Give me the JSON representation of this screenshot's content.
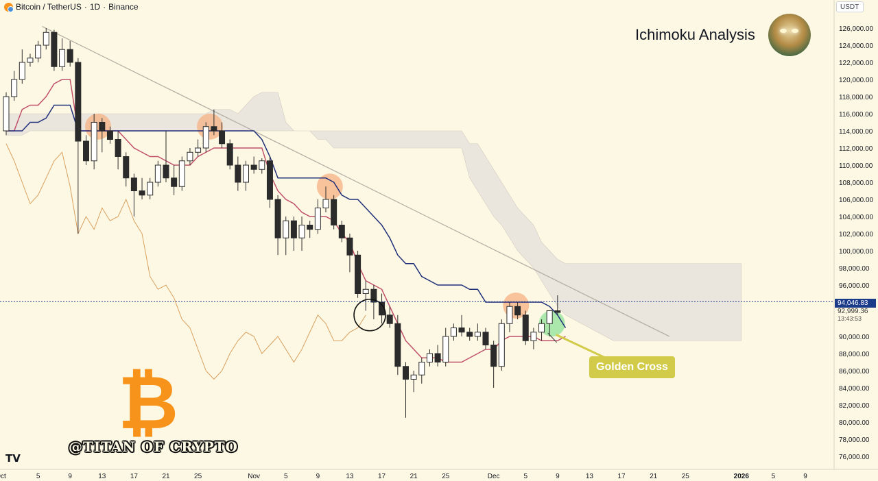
{
  "header": {
    "symbol": "Bitcoin / TetherUS",
    "interval": "1D",
    "exchange": "Binance",
    "separator": "·"
  },
  "title": "Ichimoku Analysis",
  "currency_button": "USDT",
  "watermark": "@TITAN OF CRYPTO",
  "tv_logo": "TV",
  "btc_symbol": "₿",
  "annotation": {
    "label": "Golden Cross",
    "color": "#d2cb4a"
  },
  "price_tags": {
    "last": "94,046.83",
    "mid": "92,999.36",
    "countdown": "13:43:53"
  },
  "colors": {
    "up": "#ffffff",
    "down": "#2b2b2b",
    "kijun": "#1f2f7a",
    "tenkan": "#c0506a",
    "chikou": "#d9a060",
    "cloud": "#e6e3dc",
    "trendline": "#b5b0a5",
    "highlight": "#f5b283",
    "golden": "#8fe39a"
  },
  "chart_data": {
    "type": "candlestick",
    "title": "",
    "y_axis": {
      "min": 74000,
      "max": 128000,
      "ticks": [
        "126,000.00",
        "124,000.00",
        "122,000.00",
        "120,000.00",
        "118,000.00",
        "116,000.00",
        "114,000.00",
        "112,000.00",
        "110,000.00",
        "108,000.00",
        "106,000.00",
        "104,000.00",
        "102,000.00",
        "100,000.00",
        "98,000.00",
        "96,000.00",
        "94,000.00",
        "90,000.00",
        "88,000.00",
        "86,000.00",
        "84,000.00",
        "82,000.00",
        "80,000.00",
        "78,000.00",
        "76,000.00"
      ]
    },
    "x_axis": {
      "start_index": 0,
      "end_index": 100,
      "ticks": [
        {
          "i": 0,
          "label": "Oct"
        },
        {
          "i": 4,
          "label": "5"
        },
        {
          "i": 8,
          "label": "9"
        },
        {
          "i": 12,
          "label": "13"
        },
        {
          "i": 16,
          "label": "17"
        },
        {
          "i": 20,
          "label": "21"
        },
        {
          "i": 24,
          "label": "25"
        },
        {
          "i": 31,
          "label": "Nov"
        },
        {
          "i": 35,
          "label": "5"
        },
        {
          "i": 39,
          "label": "9"
        },
        {
          "i": 43,
          "label": "13"
        },
        {
          "i": 47,
          "label": "17"
        },
        {
          "i": 51,
          "label": "21"
        },
        {
          "i": 55,
          "label": "25"
        },
        {
          "i": 61,
          "label": "Dec"
        },
        {
          "i": 65,
          "label": "5"
        },
        {
          "i": 69,
          "label": "9"
        },
        {
          "i": 73,
          "label": "13"
        },
        {
          "i": 77,
          "label": "17"
        },
        {
          "i": 81,
          "label": "21"
        },
        {
          "i": 85,
          "label": "25"
        },
        {
          "i": 92,
          "label": "2026"
        },
        {
          "i": 96,
          "label": "5"
        },
        {
          "i": 100,
          "label": "9"
        }
      ]
    },
    "candles": [
      {
        "o": 114000,
        "h": 118500,
        "l": 113500,
        "c": 118000
      },
      {
        "o": 118000,
        "h": 121000,
        "l": 117500,
        "c": 120000
      },
      {
        "o": 120000,
        "h": 123500,
        "l": 119500,
        "c": 122000
      },
      {
        "o": 122000,
        "h": 123000,
        "l": 121500,
        "c": 122500
      },
      {
        "o": 122500,
        "h": 124500,
        "l": 122000,
        "c": 124000
      },
      {
        "o": 124000,
        "h": 126000,
        "l": 123500,
        "c": 125500
      },
      {
        "o": 125500,
        "h": 125800,
        "l": 121000,
        "c": 121500
      },
      {
        "o": 121500,
        "h": 124800,
        "l": 121000,
        "c": 123500
      },
      {
        "o": 123500,
        "h": 124500,
        "l": 121500,
        "c": 122000
      },
      {
        "o": 122000,
        "h": 122500,
        "l": 102000,
        "c": 112800
      },
      {
        "o": 112800,
        "h": 113500,
        "l": 110000,
        "c": 110500
      },
      {
        "o": 110500,
        "h": 116000,
        "l": 109500,
        "c": 115000
      },
      {
        "o": 115000,
        "h": 115500,
        "l": 111500,
        "c": 114000
      },
      {
        "o": 114000,
        "h": 114500,
        "l": 112500,
        "c": 113000
      },
      {
        "o": 113000,
        "h": 114000,
        "l": 109500,
        "c": 111000
      },
      {
        "o": 111000,
        "h": 111500,
        "l": 107500,
        "c": 108500
      },
      {
        "o": 108500,
        "h": 109000,
        "l": 104000,
        "c": 107000
      },
      {
        "o": 107000,
        "h": 108500,
        "l": 106000,
        "c": 106500
      },
      {
        "o": 106500,
        "h": 108500,
        "l": 106000,
        "c": 108000
      },
      {
        "o": 108000,
        "h": 110500,
        "l": 107500,
        "c": 110000
      },
      {
        "o": 110000,
        "h": 114000,
        "l": 108000,
        "c": 108500
      },
      {
        "o": 108500,
        "h": 110000,
        "l": 106500,
        "c": 107500
      },
      {
        "o": 107500,
        "h": 111000,
        "l": 107000,
        "c": 110500
      },
      {
        "o": 110500,
        "h": 112000,
        "l": 110000,
        "c": 111500
      },
      {
        "o": 111500,
        "h": 113000,
        "l": 111000,
        "c": 112000
      },
      {
        "o": 112000,
        "h": 115000,
        "l": 111500,
        "c": 114500
      },
      {
        "o": 114500,
        "h": 116500,
        "l": 113500,
        "c": 114000
      },
      {
        "o": 114000,
        "h": 115000,
        "l": 112000,
        "c": 112500
      },
      {
        "o": 112500,
        "h": 113000,
        "l": 109500,
        "c": 110000
      },
      {
        "o": 110000,
        "h": 111000,
        "l": 107000,
        "c": 108000
      },
      {
        "o": 108000,
        "h": 110500,
        "l": 107000,
        "c": 110000
      },
      {
        "o": 110000,
        "h": 111000,
        "l": 109000,
        "c": 109500
      },
      {
        "o": 109500,
        "h": 110800,
        "l": 109000,
        "c": 110500
      },
      {
        "o": 110500,
        "h": 111000,
        "l": 105000,
        "c": 106000
      },
      {
        "o": 106000,
        "h": 106500,
        "l": 99500,
        "c": 101500
      },
      {
        "o": 101500,
        "h": 104000,
        "l": 99500,
        "c": 103500
      },
      {
        "o": 103500,
        "h": 104000,
        "l": 100000,
        "c": 101500
      },
      {
        "o": 101500,
        "h": 104000,
        "l": 100000,
        "c": 103000
      },
      {
        "o": 103000,
        "h": 103500,
        "l": 101500,
        "c": 102500
      },
      {
        "o": 102500,
        "h": 106000,
        "l": 102000,
        "c": 105000
      },
      {
        "o": 105000,
        "h": 107500,
        "l": 104500,
        "c": 106000
      },
      {
        "o": 106000,
        "h": 106500,
        "l": 102500,
        "c": 103000
      },
      {
        "o": 103000,
        "h": 103500,
        "l": 101000,
        "c": 101500
      },
      {
        "o": 101500,
        "h": 102000,
        "l": 97500,
        "c": 99500
      },
      {
        "o": 99500,
        "h": 100000,
        "l": 94500,
        "c": 95000
      },
      {
        "o": 95000,
        "h": 96500,
        "l": 93000,
        "c": 95500
      },
      {
        "o": 95500,
        "h": 96000,
        "l": 92000,
        "c": 94000
      },
      {
        "o": 94000,
        "h": 95000,
        "l": 91500,
        "c": 92500
      },
      {
        "o": 92500,
        "h": 93500,
        "l": 91000,
        "c": 91500
      },
      {
        "o": 91500,
        "h": 92500,
        "l": 85500,
        "c": 86500
      },
      {
        "o": 86500,
        "h": 87000,
        "l": 80500,
        "c": 85000
      },
      {
        "o": 85000,
        "h": 86000,
        "l": 83500,
        "c": 85500
      },
      {
        "o": 85500,
        "h": 87500,
        "l": 84500,
        "c": 87000
      },
      {
        "o": 87000,
        "h": 88500,
        "l": 86500,
        "c": 88000
      },
      {
        "o": 88000,
        "h": 89000,
        "l": 86500,
        "c": 87000
      },
      {
        "o": 87000,
        "h": 91000,
        "l": 86500,
        "c": 90000
      },
      {
        "o": 90000,
        "h": 91500,
        "l": 89500,
        "c": 91000
      },
      {
        "o": 91000,
        "h": 92500,
        "l": 90000,
        "c": 90500
      },
      {
        "o": 90500,
        "h": 91000,
        "l": 89500,
        "c": 90000
      },
      {
        "o": 90000,
        "h": 91500,
        "l": 89500,
        "c": 90500
      },
      {
        "o": 90500,
        "h": 91000,
        "l": 88500,
        "c": 89000
      },
      {
        "o": 89000,
        "h": 89500,
        "l": 84000,
        "c": 86500
      },
      {
        "o": 86500,
        "h": 92000,
        "l": 86000,
        "c": 91500
      },
      {
        "o": 91500,
        "h": 94000,
        "l": 90500,
        "c": 93500
      },
      {
        "o": 93500,
        "h": 94000,
        "l": 92000,
        "c": 92500
      },
      {
        "o": 92500,
        "h": 93000,
        "l": 89000,
        "c": 89500
      },
      {
        "o": 89500,
        "h": 91000,
        "l": 88500,
        "c": 90500
      },
      {
        "o": 90500,
        "h": 92000,
        "l": 89500,
        "c": 91500
      },
      {
        "o": 91500,
        "h": 92500,
        "l": 90000,
        "c": 93000
      },
      {
        "o": 93000,
        "h": 94800,
        "l": 92500,
        "c": 92800
      }
    ],
    "kijun": [
      114000,
      114000,
      114000,
      115000,
      115000,
      115500,
      117000,
      117000,
      117000,
      114000,
      114000,
      114000,
      114000,
      114000,
      114000,
      114000,
      114000,
      114000,
      114000,
      114000,
      114000,
      114000,
      114000,
      114000,
      114000,
      114000,
      114000,
      114000,
      114000,
      114000,
      114000,
      114000,
      113000,
      111000,
      108500,
      108500,
      108500,
      108500,
      108500,
      108500,
      108500,
      108000,
      106500,
      106000,
      106000,
      105000,
      104000,
      103000,
      101500,
      99500,
      98500,
      98500,
      97000,
      96500,
      96000,
      96000,
      96000,
      96000,
      95500,
      95500,
      94000,
      94000,
      94000,
      94000,
      94000,
      94000,
      94000,
      94000,
      93500,
      92500,
      91000
    ],
    "tenkan": [
      114000,
      114000,
      116500,
      117000,
      117000,
      118000,
      119500,
      120000,
      120000,
      114000,
      114000,
      114000,
      114000,
      114000,
      114000,
      113000,
      112000,
      111500,
      111000,
      111000,
      110500,
      110000,
      110000,
      110000,
      111000,
      111500,
      112000,
      112000,
      112000,
      112000,
      112000,
      112000,
      112000,
      109000,
      107000,
      106000,
      105500,
      104500,
      104000,
      104000,
      104000,
      103500,
      102000,
      101000,
      98500,
      96500,
      96000,
      95500,
      93500,
      91500,
      89500,
      88500,
      87500,
      87500,
      87500,
      87000,
      87000,
      87000,
      87500,
      88000,
      88500,
      88500,
      89500,
      90000,
      90000,
      90000,
      90000,
      89500,
      89500,
      89500,
      90000
    ],
    "chikou_note": "lagging span values plotted from index 0 to 45",
    "chikou": [
      112500,
      110500,
      108000,
      105500,
      106500,
      108500,
      110500,
      111500,
      107500,
      102000,
      104000,
      102500,
      105000,
      103500,
      104000,
      106000,
      103500,
      102000,
      97000,
      95500,
      96000,
      94500,
      92000,
      91000,
      88500,
      86000,
      85000,
      86000,
      88000,
      89500,
      90500,
      90000,
      88000,
      89000,
      90000,
      88500,
      87000,
      88500,
      90500,
      92500,
      91500,
      89500,
      89500,
      90500,
      91000,
      92500
    ],
    "cloud": {
      "start_index": 0,
      "upper": [
        116000,
        116000,
        116000,
        116000,
        116000,
        116000,
        116000,
        116000,
        116000,
        116000,
        116000,
        116000,
        116000,
        116000,
        116000,
        116000,
        116000,
        116000,
        116000,
        116000,
        116000,
        116000,
        116000,
        116000,
        116000,
        116000,
        116500,
        116500,
        116500,
        116000,
        117000,
        118000,
        118500,
        118500,
        118500,
        115000,
        114000,
        114000,
        114000,
        114000,
        114000,
        114000,
        114000,
        114000,
        114000,
        114000,
        114000,
        114000,
        114000,
        114000,
        114000,
        114000,
        114000,
        114000,
        114000,
        114000,
        114000,
        114000,
        112500,
        112500,
        111000,
        109500,
        108000,
        106500,
        105000,
        104000,
        103000,
        101000,
        100000,
        99000,
        98500,
        98500,
        98500,
        98500,
        98500,
        98500,
        98500,
        98500,
        98500,
        98500,
        98500,
        98500,
        98500,
        98500,
        98500,
        98500,
        98500,
        98500,
        98500,
        98500,
        98500,
        98500,
        98500
      ],
      "lower": [
        113500,
        113500,
        113500,
        114000,
        114000,
        114000,
        114000,
        114000,
        114000,
        114000,
        114000,
        114000,
        114000,
        114000,
        114000,
        114000,
        114000,
        114000,
        114000,
        114000,
        114000,
        114000,
        114000,
        114000,
        114000,
        114000,
        114000,
        114000,
        114000,
        114000,
        114000,
        114000,
        114000,
        114000,
        114000,
        114000,
        114000,
        114000,
        114000,
        113000,
        113000,
        112000,
        112000,
        112000,
        112000,
        112000,
        112000,
        112000,
        112000,
        112000,
        112000,
        112000,
        112000,
        112000,
        112000,
        112000,
        112000,
        112000,
        108500,
        107000,
        105500,
        104000,
        103000,
        101500,
        100000,
        99000,
        98000,
        96500,
        95000,
        93500,
        92500,
        92000,
        91500,
        91000,
        90500,
        90000,
        89500,
        89500,
        89500,
        89500,
        89500,
        89500,
        89500,
        89500,
        89500,
        89500,
        89500,
        89500,
        89500,
        89500,
        89500,
        89500,
        89500
      ]
    },
    "trendline": {
      "x1": 4.5,
      "y1": 126200,
      "x2": 83,
      "y2": 90000
    },
    "last_price_line": 94046.83,
    "highlights": [
      {
        "i": 11.5,
        "y": 114500,
        "color": "orange"
      },
      {
        "i": 25.5,
        "y": 114500,
        "color": "orange"
      },
      {
        "i": 40.5,
        "y": 107500,
        "color": "orange"
      },
      {
        "i": 63.8,
        "y": 93600,
        "color": "orange"
      },
      {
        "i": 68.3,
        "y": 91500,
        "color": "green"
      }
    ],
    "black_circle": {
      "i": 45.5,
      "y": 92500
    }
  }
}
